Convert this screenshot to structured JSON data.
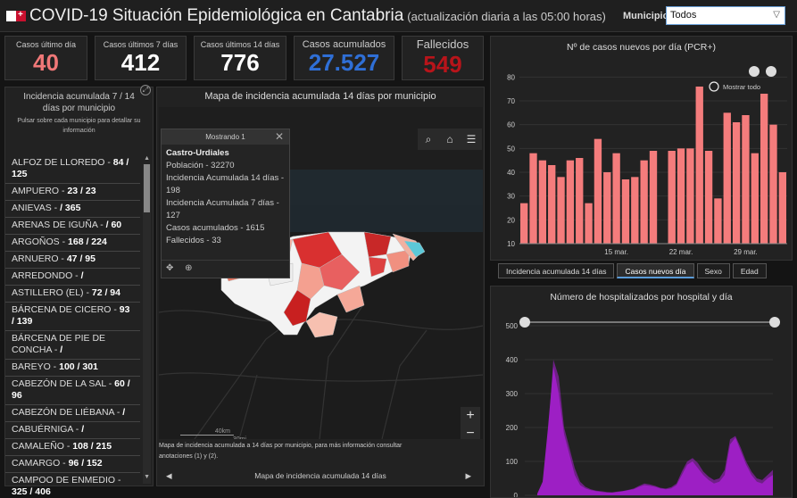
{
  "header": {
    "title": "COVID-19 Situación Epidemiológica en Cantabria",
    "subtitle": "(actualización diaria a las 05:00 horas)",
    "municipio_label": "Municipio",
    "municipio_value": "Todos",
    "flag_colors": [
      "#ffffff",
      "#c8102e"
    ]
  },
  "stats": [
    {
      "label": "Casos último día",
      "value": "40",
      "color": "#f07878"
    },
    {
      "label": "Casos últimos 7 días",
      "value": "412",
      "color": "#ffffff"
    },
    {
      "label": "Casos últimos 14 días",
      "value": "776",
      "color": "#ffffff"
    },
    {
      "label": "Casos acumulados",
      "value": "27.527",
      "color": "#2f6fd6"
    },
    {
      "label": "Fallecidos",
      "value": "549",
      "color": "#b8141a"
    }
  ],
  "list": {
    "title_line1": "Incidencia acumulada 7 / 14",
    "title_line2": "días por municipio",
    "hint": "Pulsar sobre cada municipio para detallar su información",
    "items": [
      {
        "name": "ALFOZ DE LLOREDO - ",
        "value": "84 / 125"
      },
      {
        "name": "AMPUERO - ",
        "value": "23 / 23"
      },
      {
        "name": "ANIEVAS - ",
        "value": " / 365"
      },
      {
        "name": "ARENAS DE IGUÑA - ",
        "value": " / 60"
      },
      {
        "name": "ARGOÑOS - ",
        "value": "168 / 224"
      },
      {
        "name": "ARNUERO - ",
        "value": "47 / 95"
      },
      {
        "name": "ARREDONDO - ",
        "value": " /"
      },
      {
        "name": "ASTILLERO (EL) - ",
        "value": "72 / 94"
      },
      {
        "name": "BÁRCENA DE CICERO - ",
        "value": "93 / 139"
      },
      {
        "name": "BÁRCENA DE PIE DE CONCHA - ",
        "value": " /"
      },
      {
        "name": "BAREYO - ",
        "value": "100 / 301"
      },
      {
        "name": "CABEZÓN DE LA SAL - ",
        "value": "60 / 96"
      },
      {
        "name": "CABEZÓN DE LIÉBANA - ",
        "value": " /"
      },
      {
        "name": "CABUÉRNIGA - ",
        "value": " /"
      },
      {
        "name": "CAMALEÑO - ",
        "value": "108 / 215"
      },
      {
        "name": "CAMARGO - ",
        "value": "96 / 152"
      },
      {
        "name": "CAMPOO DE ENMEDIO - ",
        "value": "325 / 406"
      }
    ]
  },
  "map": {
    "title": "Mapa de incidencia acumulada 14 días por municipio",
    "popup": {
      "header": "Mostrando 1",
      "title": "Castro-Urdiales",
      "lines": [
        "Población - 32270",
        "Incidencia Acumulada 14 días - 198",
        "Incidencia Acumulada 7 días - 127",
        "Casos acumulados - 1615",
        "Fallecidos - 33"
      ]
    },
    "scale_km": "40km",
    "scale_mi": "30mi",
    "caption": "Mapa de incidencia acumulada a 14 días por municipio, para más información consultar anotaciones (1) y (2).",
    "nav_label": "Mapa de incidencia acumulada 14 días"
  },
  "chart1_meta": {
    "title": "Nº de casos nuevos por día (PCR+)",
    "reset_label": "Mostrar todo",
    "bar_color": "#f47c7c",
    "highlight_color": "#5a9bd8"
  },
  "chart2_meta": {
    "title": "Número de hospitalizados por hospital y día",
    "area_color": "#a020c8"
  },
  "tabs": [
    {
      "label": "Incidencia acumulada 14 días",
      "active": false
    },
    {
      "label": "Casos nuevos día",
      "active": true
    },
    {
      "label": "Sexo",
      "active": false
    },
    {
      "label": "Edad",
      "active": false
    }
  ],
  "chart_data": [
    {
      "type": "bar",
      "title": "Nº de casos nuevos por día (PCR+)",
      "y_ticks": [
        10,
        20,
        30,
        40,
        50,
        60,
        70,
        80
      ],
      "ylim": [
        10,
        82
      ],
      "x_tick_labels": [
        "15 mar.",
        "22 mar.",
        "29 mar."
      ],
      "values": [
        27,
        48,
        45,
        43,
        38,
        45,
        46,
        27,
        54,
        40,
        48,
        37,
        38,
        45,
        49,
        10,
        49,
        50,
        50,
        76,
        49,
        29,
        65,
        61,
        64,
        48,
        73,
        60,
        40
      ],
      "highlighted_index": 15
    },
    {
      "type": "area",
      "title": "Número de hospitalizados por hospital y día",
      "y_ticks": [
        0,
        100,
        200,
        300,
        400,
        500
      ],
      "ylim": [
        0,
        500
      ],
      "series": [
        {
          "values": [
            5,
            40,
            200,
            380,
            300,
            180,
            120,
            60,
            30,
            20,
            15,
            12,
            10,
            8,
            8,
            10,
            12,
            15,
            18,
            25,
            30,
            28,
            25,
            20,
            18,
            20,
            30,
            60,
            90,
            100,
            80,
            60,
            45,
            35,
            40,
            60,
            150,
            170,
            130,
            90,
            60,
            40,
            35,
            50,
            60
          ]
        },
        {
          "values": [
            3,
            30,
            170,
            400,
            350,
            200,
            140,
            80,
            40,
            25,
            18,
            14,
            12,
            10,
            9,
            11,
            13,
            16,
            20,
            28,
            35,
            32,
            28,
            22,
            20,
            24,
            35,
            70,
            100,
            110,
            95,
            70,
            55,
            45,
            50,
            75,
            165,
            175,
            140,
            100,
            70,
            50,
            45,
            60,
            75
          ]
        }
      ]
    }
  ]
}
